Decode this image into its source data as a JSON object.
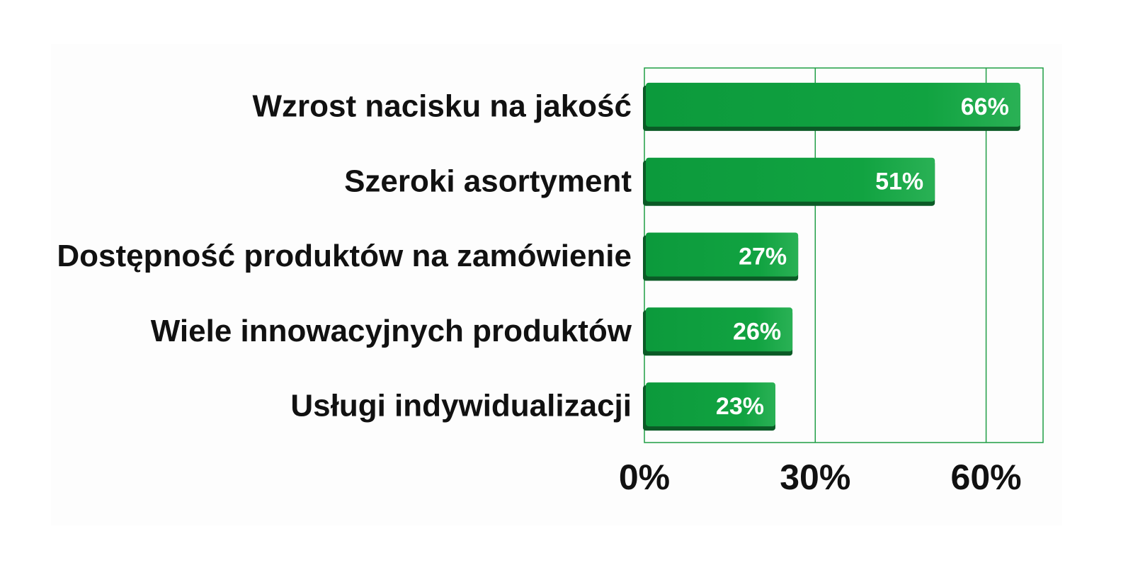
{
  "chart_data": {
    "type": "bar",
    "orientation": "horizontal",
    "categories": [
      "Wzrost nacisku na jakość",
      "Szeroki asortyment",
      "Dostępność produktów na zamówienie",
      "Wiele innowacyjnych produktów",
      "Usługi indywidualizacji"
    ],
    "values": [
      66,
      51,
      27,
      26,
      23
    ],
    "value_labels": [
      "66%",
      "51%",
      "27%",
      "26%",
      "23%"
    ],
    "x_ticks": [
      0,
      30,
      60
    ],
    "x_tick_labels": [
      "0%",
      "30%",
      "60%"
    ],
    "xlim": [
      0,
      70
    ],
    "grid": true,
    "legend": "none",
    "title": "",
    "xlabel": "",
    "ylabel": "",
    "colors": {
      "bar": "#0f9d3f",
      "bar_highlight": "#22b04f",
      "bar_shadow": "#0b5a26",
      "grid": "#1f9e45",
      "background": "#fdfdfd"
    }
  }
}
